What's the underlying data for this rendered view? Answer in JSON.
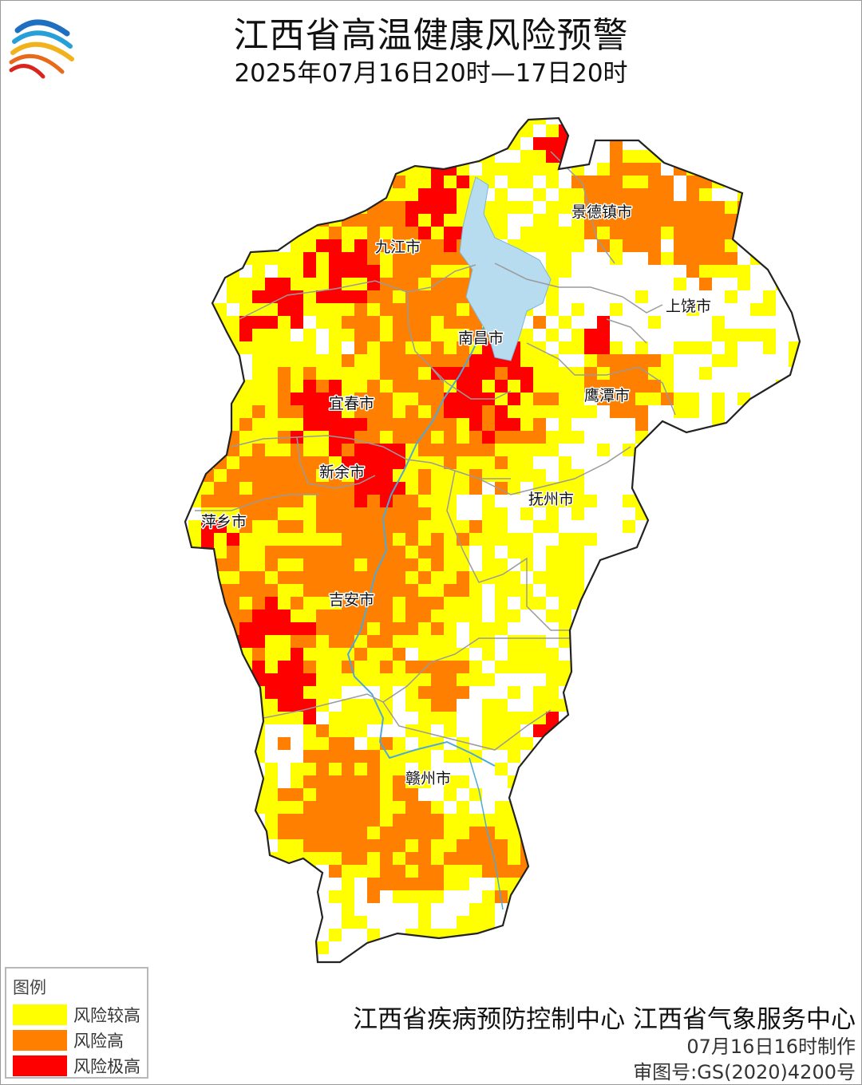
{
  "header": {
    "title": "江西省高温健康风险预警",
    "subtitle": "2025年07月16日20时—17日20时"
  },
  "colors": {
    "risk_high_relative": "#ffff00",
    "risk_high": "#ff8000",
    "risk_extreme": "#ff0000",
    "water": "#b7dcf0",
    "boundary": "#222222",
    "inner_boundary": "#9a9a9a"
  },
  "map": {
    "region": "江西省",
    "cities": [
      {
        "id": "jiujiang",
        "label": "九江市"
      },
      {
        "id": "jingdezhen",
        "label": "景德镇市"
      },
      {
        "id": "shangrao",
        "label": "上饶市"
      },
      {
        "id": "nanchang",
        "label": "南昌市"
      },
      {
        "id": "yingtan",
        "label": "鹰潭市"
      },
      {
        "id": "yichun",
        "label": "宜春市"
      },
      {
        "id": "xinyu",
        "label": "新余市"
      },
      {
        "id": "fuzhou",
        "label": "抚州市"
      },
      {
        "id": "pingxiang",
        "label": "萍乡市"
      },
      {
        "id": "jian",
        "label": "吉安市"
      },
      {
        "id": "ganzhou",
        "label": "赣州市"
      }
    ]
  },
  "legend": {
    "title": "图例",
    "items": [
      {
        "label": "风险较高",
        "color": "#ffff00"
      },
      {
        "label": "风险高",
        "color": "#ff8000"
      },
      {
        "label": "风险极高",
        "color": "#ff0000"
      }
    ]
  },
  "footer": {
    "source": "江西省疾病预防控制中心 江西省气象服务中心",
    "made": "07月16日16时制作",
    "review": "审图号:GS(2020)4200号"
  }
}
